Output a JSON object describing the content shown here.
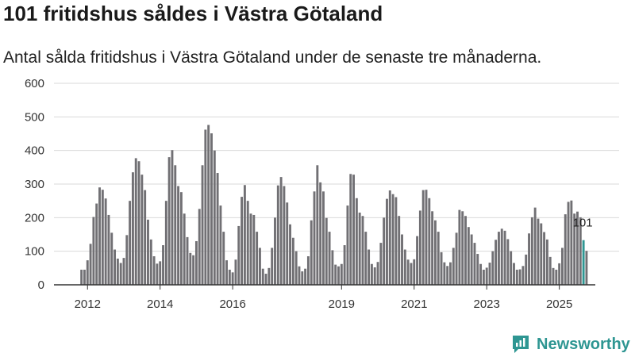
{
  "title": "101 fritidshus såldes i Västra Götaland",
  "subtitle": "Antal sålda fritidshus i Västra Götaland under de senaste tre månaderna.",
  "brand": "Newsworthy",
  "colors": {
    "bar": "#717074",
    "highlight": "#2e9692",
    "grid": "#d9d9d9",
    "axis": "#333333"
  },
  "chart_data": {
    "type": "bar",
    "title": "101 fritidshus såldes i Västra Götaland",
    "xlabel": "",
    "ylabel": "",
    "ylim": [
      0,
      600
    ],
    "yticks": [
      0,
      100,
      200,
      300,
      400,
      500,
      600
    ],
    "xticks": [
      {
        "label": "2012",
        "index": 2
      },
      {
        "label": "2014",
        "index": 26
      },
      {
        "label": "2016",
        "index": 50
      },
      {
        "label": "2019",
        "index": 86
      },
      {
        "label": "2021",
        "index": 110
      },
      {
        "label": "2023",
        "index": 134
      },
      {
        "label": "2025",
        "index": 158
      }
    ],
    "highlight_index": 166,
    "annotation": "101",
    "values": [
      45,
      45,
      73,
      122,
      202,
      242,
      290,
      283,
      257,
      208,
      155,
      105,
      78,
      65,
      80,
      148,
      250,
      335,
      377,
      368,
      328,
      282,
      194,
      135,
      85,
      63,
      70,
      118,
      250,
      380,
      401,
      356,
      294,
      276,
      212,
      142,
      95,
      88,
      130,
      226,
      356,
      462,
      476,
      451,
      400,
      333,
      236,
      158,
      73,
      45,
      37,
      75,
      175,
      262,
      297,
      250,
      212,
      208,
      158,
      110,
      48,
      33,
      50,
      110,
      200,
      296,
      321,
      294,
      245,
      180,
      140,
      100,
      55,
      40,
      48,
      85,
      192,
      278,
      356,
      305,
      278,
      199,
      158,
      103,
      60,
      55,
      62,
      118,
      236,
      330,
      328,
      258,
      215,
      205,
      158,
      105,
      62,
      52,
      68,
      125,
      200,
      256,
      281,
      270,
      261,
      205,
      150,
      105,
      75,
      65,
      76,
      145,
      221,
      282,
      283,
      258,
      219,
      192,
      158,
      97,
      67,
      56,
      67,
      110,
      155,
      223,
      219,
      205,
      172,
      150,
      125,
      92,
      62,
      45,
      51,
      66,
      100,
      134,
      158,
      167,
      161,
      136,
      100,
      65,
      45,
      46,
      56,
      90,
      153,
      201,
      230,
      197,
      183,
      157,
      135,
      83,
      50,
      45,
      64,
      110,
      210,
      247,
      251,
      212,
      218,
      201,
      133,
      101
    ]
  }
}
